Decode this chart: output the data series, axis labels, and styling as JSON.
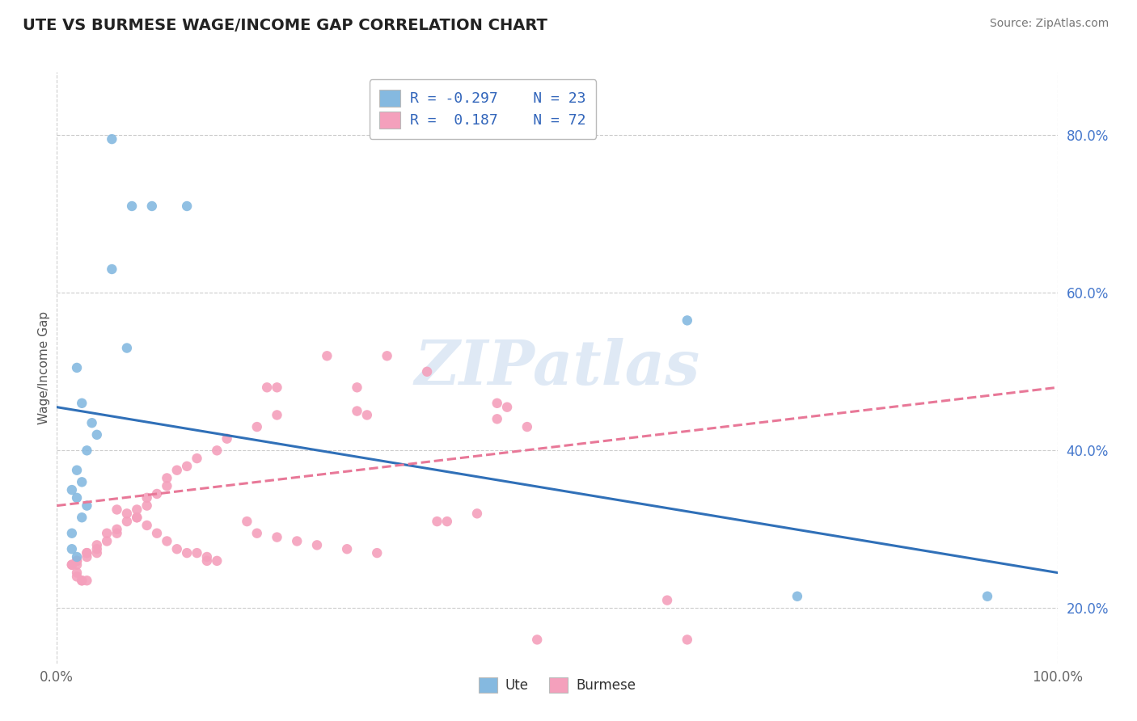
{
  "title": "UTE VS BURMESE WAGE/INCOME GAP CORRELATION CHART",
  "source": "Source: ZipAtlas.com",
  "ylabel": "Wage/Income Gap",
  "xlim": [
    0,
    1
  ],
  "ylim": [
    0.13,
    0.88
  ],
  "ute_color": "#85b9e0",
  "burmese_color": "#f4a0bc",
  "ute_line_color": "#3070b8",
  "burmese_line_color": "#e87898",
  "R_ute": -0.297,
  "N_ute": 23,
  "R_burmese": 0.187,
  "N_burmese": 72,
  "watermark": "ZIPatlas",
  "ute_x": [
    0.055,
    0.075,
    0.095,
    0.13,
    0.055,
    0.07,
    0.02,
    0.025,
    0.035,
    0.04,
    0.03,
    0.02,
    0.025,
    0.015,
    0.02,
    0.03,
    0.025,
    0.015,
    0.015,
    0.02,
    0.63,
    0.74,
    0.93
  ],
  "ute_y": [
    0.795,
    0.71,
    0.71,
    0.71,
    0.63,
    0.53,
    0.505,
    0.46,
    0.435,
    0.42,
    0.4,
    0.375,
    0.36,
    0.35,
    0.34,
    0.33,
    0.315,
    0.295,
    0.275,
    0.265,
    0.565,
    0.215,
    0.215
  ],
  "burmese_x": [
    0.22,
    0.3,
    0.3,
    0.31,
    0.44,
    0.45,
    0.44,
    0.47,
    0.37,
    0.33,
    0.27,
    0.21,
    0.22,
    0.2,
    0.17,
    0.16,
    0.14,
    0.13,
    0.12,
    0.11,
    0.11,
    0.1,
    0.09,
    0.09,
    0.08,
    0.08,
    0.07,
    0.06,
    0.06,
    0.05,
    0.05,
    0.04,
    0.04,
    0.04,
    0.03,
    0.03,
    0.03,
    0.02,
    0.02,
    0.02,
    0.015,
    0.015,
    0.02,
    0.02,
    0.025,
    0.025,
    0.03,
    0.06,
    0.07,
    0.08,
    0.09,
    0.1,
    0.11,
    0.12,
    0.13,
    0.14,
    0.15,
    0.15,
    0.16,
    0.19,
    0.2,
    0.22,
    0.24,
    0.26,
    0.29,
    0.32,
    0.38,
    0.39,
    0.42,
    0.48,
    0.61,
    0.63
  ],
  "burmese_y": [
    0.48,
    0.48,
    0.45,
    0.445,
    0.46,
    0.455,
    0.44,
    0.43,
    0.5,
    0.52,
    0.52,
    0.48,
    0.445,
    0.43,
    0.415,
    0.4,
    0.39,
    0.38,
    0.375,
    0.365,
    0.355,
    0.345,
    0.34,
    0.33,
    0.325,
    0.315,
    0.31,
    0.3,
    0.295,
    0.295,
    0.285,
    0.28,
    0.275,
    0.27,
    0.27,
    0.27,
    0.265,
    0.26,
    0.26,
    0.255,
    0.255,
    0.255,
    0.245,
    0.24,
    0.235,
    0.235,
    0.235,
    0.325,
    0.32,
    0.315,
    0.305,
    0.295,
    0.285,
    0.275,
    0.27,
    0.27,
    0.265,
    0.26,
    0.26,
    0.31,
    0.295,
    0.29,
    0.285,
    0.28,
    0.275,
    0.27,
    0.31,
    0.31,
    0.32,
    0.16,
    0.21,
    0.16
  ],
  "background_color": "#ffffff",
  "grid_color": "#cccccc",
  "ute_line_x0": 0.0,
  "ute_line_y0": 0.455,
  "ute_line_x1": 1.0,
  "ute_line_y1": 0.245,
  "bur_line_x0": 0.0,
  "bur_line_y0": 0.33,
  "bur_line_x1": 1.0,
  "bur_line_y1": 0.48
}
